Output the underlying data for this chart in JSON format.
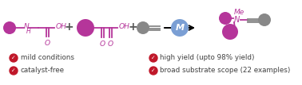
{
  "bg_color": "#ffffff",
  "purple_color": "#b5359a",
  "dark_gray": "#555555",
  "blue_circle_color": "#7b9fd4",
  "check_color": "#c0182a",
  "text_color": "#404040",
  "bullet_points_left": [
    "mild conditions",
    "catalyst-free"
  ],
  "bullet_points_right": [
    "high yield (upto 98% yield)",
    "broad substrate scope (22 examples)"
  ]
}
